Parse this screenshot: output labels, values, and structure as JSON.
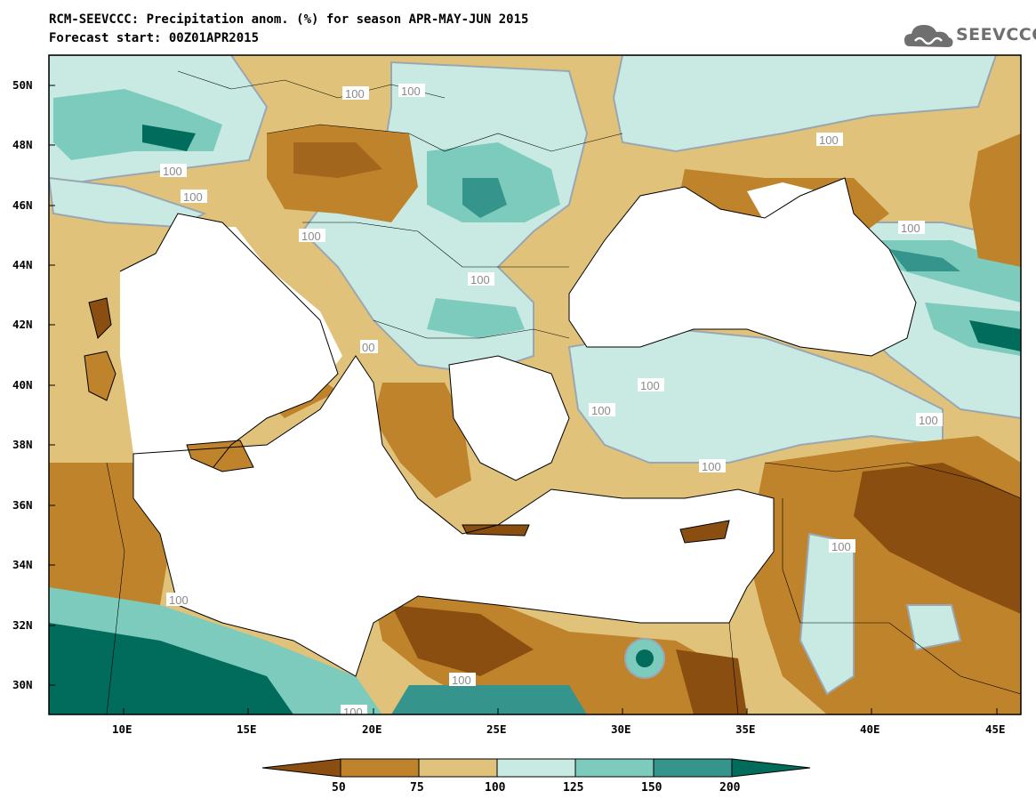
{
  "title": {
    "line1": "RCM-SEEVCCC: Precipitation anom. (%) for season APR-MAY-JUN 2015",
    "line2": "Forecast start: 00Z01APR2015"
  },
  "logo": {
    "text": "SEEVCCC",
    "icon": "cloud-icon"
  },
  "map": {
    "lat_labels": [
      "50N",
      "48N",
      "46N",
      "44N",
      "42N",
      "40N",
      "38N",
      "36N",
      "34N",
      "32N",
      "30N"
    ],
    "lon_labels": [
      "10E",
      "15E",
      "20E",
      "25E",
      "30E",
      "35E",
      "40E",
      "45E"
    ],
    "contour_label": "100",
    "contour_labels_visible": [
      "100",
      "100",
      "100",
      "100",
      "100",
      "100",
      "100",
      "100",
      "100",
      "100",
      "100",
      "100",
      "100",
      "100",
      "100",
      "100",
      "00"
    ]
  },
  "colorbar": {
    "labels": [
      "50",
      "75",
      "100",
      "125",
      "150",
      "200"
    ],
    "colors": [
      "#8a4f10",
      "#bf832b",
      "#e1c27b",
      "#c8eae2",
      "#7ccbbd",
      "#35948b",
      "#016c5c"
    ]
  },
  "colors": {
    "very_dry": "#8a4f10",
    "dry": "#bf832b",
    "slightly_dry": "#e1c27b",
    "slightly_wet": "#c8eae2",
    "wet": "#7ccbbd",
    "very_wet": "#35948b",
    "extreme_wet": "#016c5c",
    "water": "#ffffff",
    "contour": "#9aa7b2"
  }
}
